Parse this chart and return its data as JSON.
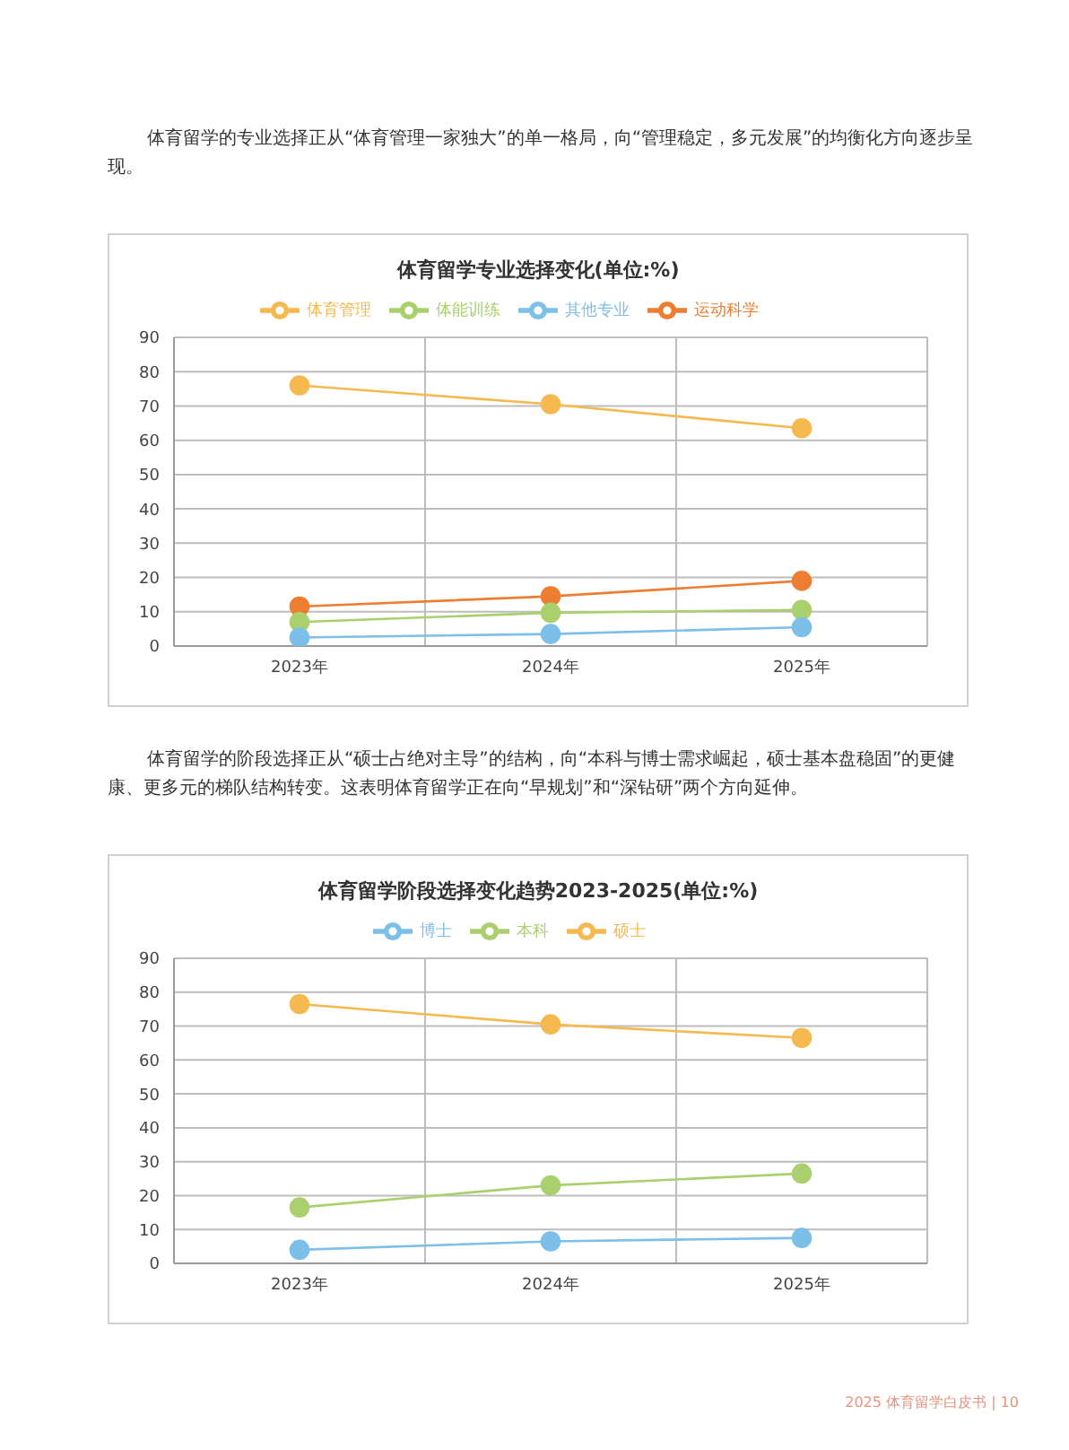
{
  "chart_data": [
    {
      "type": "line",
      "title": "体育留学专业选择变化(单位:%)",
      "categories": [
        "2023年",
        "2024年",
        "2025年"
      ],
      "series": [
        {
          "name": "体育管理",
          "color": "#f5b94f",
          "values": [
            76,
            70.5,
            63.5
          ]
        },
        {
          "name": "运动科学",
          "color": "#ed7d31",
          "values": [
            11.5,
            14.5,
            19
          ]
        },
        {
          "name": "体能训练",
          "color": "#a9d06d",
          "values": [
            7,
            9.7,
            10.5
          ]
        },
        {
          "name": "其他专业",
          "color": "#7cbfe8",
          "values": [
            2.5,
            3.5,
            5.5
          ]
        }
      ],
      "ylim": [
        0,
        90
      ],
      "yticks": [
        0,
        10,
        20,
        30,
        40,
        50,
        60,
        70,
        80,
        90
      ],
      "grid": true,
      "legend": "top",
      "marker": "circle",
      "annotations": [
        "体育留学的专业选择正从“体育管理一家独大”的单一格局，向“管理稳定，多元发展”的均衡化方向逐步呈现。"
      ]
    },
    {
      "type": "line",
      "title": "体育留学阶段选择变化趋势2023-2025(单位:%)",
      "categories": [
        "2023年",
        "2024年",
        "2025年"
      ],
      "series": [
        {
          "name": "本科",
          "color": "#a9d06d",
          "values": [
            16.5,
            23,
            26.5
          ]
        },
        {
          "name": "硕士",
          "color": "#f5b94f",
          "values": [
            76.5,
            70.5,
            66.5
          ]
        },
        {
          "name": "博士",
          "color": "#7cbfe8",
          "values": [
            4,
            6.5,
            7.5
          ]
        }
      ],
      "ylim": [
        0,
        90
      ],
      "yticks": [
        0,
        10,
        20,
        30,
        40,
        50,
        60,
        70,
        80,
        90
      ],
      "grid": true,
      "legend": "top",
      "marker": "circle",
      "annotations": [
        "体育留学的阶段选择正从“硕士占绝对主导”的结构，向“本科与博士需求崛起，硕士基本盘稳固”的更健康、更多元的梯队结构转变。这表明体育留学正在向“早规划”和“深钻研”两个方向延伸。",
        "2025 体育留学白皮书 | 10"
      ]
    }
  ]
}
